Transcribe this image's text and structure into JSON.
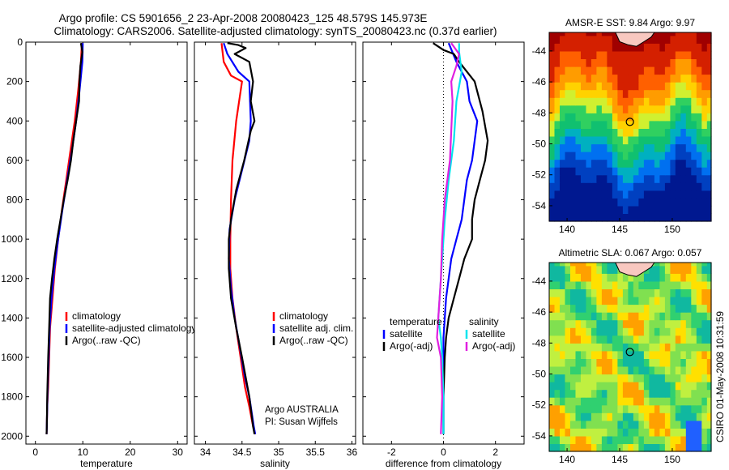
{
  "header": {
    "title_line1": "Argo profile: CS 5901656_2 23-Apr-2008 20080423_125 48.579S 145.973E",
    "title_line2": "Climatology: CARS2006. Satellite-adjusted climatology: synTS_20080423.nc (0.37d earlier)"
  },
  "side_stamp": "CSIRO 01-May-2008 10:31:59",
  "colors": {
    "climatology": "#ff0000",
    "satellite": "#0000ff",
    "argo": "#000000",
    "satellite_salinity": "#00e5ee",
    "argo_adj_salinity": "#e020e0"
  },
  "chart_data": [
    {
      "id": "temperature",
      "type": "line",
      "xlabel": "temperature",
      "ylabel": "",
      "xlim": [
        -2,
        32
      ],
      "ylim": [
        2040,
        0
      ],
      "y_reversed": true,
      "xticks": [
        "0",
        "10",
        "20",
        "30"
      ],
      "xtick_values": [
        0,
        10,
        20,
        30
      ],
      "yticks": [
        "0",
        "200",
        "400",
        "600",
        "800",
        "1000",
        "1200",
        "1400",
        "1600",
        "1800",
        "2000"
      ],
      "ytick_values": [
        0,
        200,
        400,
        600,
        800,
        1000,
        1200,
        1400,
        1600,
        1800,
        2000
      ],
      "legend": {
        "placement": "lower-right",
        "entries": [
          {
            "label": "climatology",
            "color": "#ff0000"
          },
          {
            "label": "satellite-adjusted climatology",
            "color": "#0000ff"
          },
          {
            "label": "Argo(..raw -QC)",
            "color": "#000000"
          }
        ]
      },
      "series": [
        {
          "color": "#ff0000",
          "x": [
            9.8,
            9.6,
            9.0,
            8.3,
            7.4,
            6.5,
            5.6,
            4.8,
            4.1,
            3.6,
            3.1,
            2.9,
            2.7,
            2.5,
            2.4,
            2.35
          ],
          "y": [
            5,
            100,
            250,
            400,
            550,
            700,
            850,
            1000,
            1150,
            1300,
            1450,
            1600,
            1750,
            1850,
            1950,
            1990
          ]
        },
        {
          "color": "#0000ff",
          "x": [
            10.0,
            9.9,
            9.3,
            8.6,
            7.7,
            6.7,
            5.7,
            4.8,
            4.0,
            3.4,
            3.0,
            2.8,
            2.6,
            2.5,
            2.4,
            2.35
          ],
          "y": [
            5,
            100,
            250,
            400,
            550,
            700,
            850,
            1000,
            1150,
            1300,
            1450,
            1600,
            1750,
            1850,
            1950,
            1990
          ]
        },
        {
          "color": "#000000",
          "x": [
            9.6,
            9.9,
            9.5,
            9.3,
            9.2,
            8.6,
            8.0,
            7.5,
            6.8,
            6.0,
            5.3,
            4.6,
            4.0,
            3.5,
            3.1,
            2.9,
            2.7,
            2.5,
            2.4,
            2.35
          ],
          "y": [
            5,
            50,
            120,
            200,
            300,
            400,
            500,
            600,
            700,
            800,
            900,
            1000,
            1100,
            1200,
            1300,
            1450,
            1600,
            1800,
            1950,
            1990
          ]
        }
      ]
    },
    {
      "id": "salinity",
      "type": "line",
      "xlabel": "salinity",
      "xlim": [
        33.85,
        36.05
      ],
      "ylim": [
        2040,
        0
      ],
      "y_reversed": true,
      "xticks": [
        "34",
        "34.5",
        "35",
        "35.5",
        "36"
      ],
      "xtick_values": [
        34,
        34.5,
        35,
        35.5,
        36
      ],
      "legend": {
        "placement": "lower-right",
        "entries": [
          {
            "label": "climatology",
            "color": "#ff0000"
          },
          {
            "label": "satellite adj. clim.",
            "color": "#0000ff"
          },
          {
            "label": "Argo(..raw -QC)",
            "color": "#000000"
          }
        ]
      },
      "annotation_lines": [
        "Argo AUSTRALIA",
        "PI: Susan Wijffels"
      ],
      "series": [
        {
          "color": "#ff0000",
          "x": [
            34.22,
            34.25,
            34.35,
            34.5,
            34.42,
            34.37,
            34.35,
            34.34,
            34.34,
            34.37,
            34.42,
            34.48,
            34.54,
            34.6,
            34.65,
            34.68
          ],
          "y": [
            5,
            100,
            170,
            200,
            400,
            600,
            800,
            1000,
            1150,
            1300,
            1450,
            1600,
            1750,
            1850,
            1950,
            1990
          ]
        },
        {
          "color": "#0000ff",
          "x": [
            34.25,
            34.3,
            34.45,
            34.6,
            34.62,
            34.6,
            34.5,
            34.4,
            34.33,
            34.32,
            34.35,
            34.4,
            34.47,
            34.54,
            34.6,
            34.66,
            34.68
          ],
          "y": [
            5,
            60,
            150,
            200,
            400,
            500,
            650,
            800,
            950,
            1100,
            1250,
            1400,
            1550,
            1700,
            1800,
            1950,
            1990
          ]
        },
        {
          "color": "#000000",
          "x": [
            34.3,
            34.45,
            34.55,
            34.4,
            34.6,
            34.65,
            34.62,
            34.67,
            34.62,
            34.53,
            34.42,
            34.35,
            34.32,
            34.32,
            34.35,
            34.42,
            34.5,
            34.6,
            34.65,
            34.67
          ],
          "y": [
            5,
            15,
            30,
            60,
            100,
            200,
            300,
            400,
            450,
            600,
            750,
            900,
            1000,
            1150,
            1300,
            1450,
            1600,
            1800,
            1950,
            1990
          ]
        }
      ]
    },
    {
      "id": "difference",
      "type": "line",
      "xlabel": "difference from climatology",
      "xlim": [
        -3.1,
        3.1
      ],
      "ylim": [
        2040,
        0
      ],
      "y_reversed": true,
      "xticks": [
        "-2",
        "0",
        "2"
      ],
      "xtick_values": [
        -2,
        0,
        2
      ],
      "legend": {
        "placement": "lower-center",
        "headers": [
          "temperature",
          "salinity"
        ],
        "entries": [
          {
            "label": "satellite",
            "color": "#0000ff"
          },
          {
            "label": "Argo(-adj)",
            "color": "#000000"
          },
          {
            "label": "satellite",
            "color": "#00e5ee"
          },
          {
            "label": "Argo(-adj)",
            "color": "#e020e0"
          }
        ]
      },
      "series": [
        {
          "name": "temperature satellite",
          "color": "#0000ff",
          "x": [
            0.2,
            0.5,
            0.9,
            1.0,
            1.3,
            1.2,
            1.1,
            0.9,
            0.8,
            0.7,
            0.5,
            0.3,
            0.2,
            0.1,
            0.05,
            0.0,
            0.0,
            0.0,
            0.0
          ],
          "y": [
            5,
            100,
            200,
            300,
            400,
            500,
            600,
            700,
            800,
            900,
            1000,
            1100,
            1200,
            1300,
            1400,
            1500,
            1600,
            1800,
            1990
          ]
        },
        {
          "name": "temperature Argo(-adj)",
          "color": "#000000",
          "x": [
            -0.4,
            0.0,
            0.4,
            0.6,
            1.2,
            1.5,
            1.7,
            1.6,
            1.4,
            1.2,
            1.1,
            1.1,
            0.8,
            0.6,
            0.4,
            0.2,
            0.1,
            0.05,
            0.0,
            0.0
          ],
          "y": [
            5,
            40,
            60,
            100,
            200,
            350,
            500,
            600,
            700,
            800,
            900,
            1000,
            1100,
            1200,
            1300,
            1400,
            1500,
            1600,
            1800,
            1990
          ]
        },
        {
          "name": "salinity satellite",
          "color": "#00e5ee",
          "x": [
            0.6,
            0.6,
            0.7,
            0.5,
            0.4,
            0.2,
            0.05,
            0.0,
            -0.05,
            -0.1,
            -0.15,
            -0.2,
            -0.1,
            -0.05,
            0.0,
            0.0
          ],
          "y": [
            5,
            50,
            150,
            300,
            500,
            700,
            900,
            1000,
            1100,
            1200,
            1300,
            1400,
            1500,
            1600,
            1800,
            1990
          ]
        },
        {
          "name": "salinity Argo(-adj)",
          "color": "#e020e0",
          "x": [
            0.3,
            0.6,
            0.5,
            0.3,
            0.35,
            0.3,
            0.25,
            0.05,
            -0.05,
            -0.1,
            -0.15,
            -0.2,
            -0.25,
            -0.1,
            -0.05,
            -0.1
          ],
          "y": [
            5,
            60,
            120,
            200,
            300,
            450,
            600,
            800,
            1000,
            1200,
            1300,
            1400,
            1500,
            1600,
            1800,
            1990
          ]
        }
      ]
    },
    {
      "id": "sst_map",
      "type": "heatmap",
      "title": "AMSR-E SST: 9.84  Argo: 9.97",
      "xlim": [
        138.3,
        153.7
      ],
      "ylim": [
        -55.0,
        -42.8
      ],
      "xticks": [
        "140",
        "145",
        "150"
      ],
      "xtick_values": [
        140,
        145,
        150
      ],
      "yticks": [
        "-44",
        "-46",
        "-48",
        "-50",
        "-52",
        "-54"
      ],
      "ytick_values": [
        -44,
        -46,
        -48,
        -50,
        -52,
        -54
      ],
      "float_position": {
        "lon": 145.973,
        "lat": -48.579
      }
    },
    {
      "id": "sla_map",
      "type": "heatmap",
      "title": "Altimetric SLA: 0.067  Argo: 0.057",
      "xlim": [
        138.3,
        153.7
      ],
      "ylim": [
        -55.0,
        -42.8
      ],
      "xticks": [
        "140",
        "145",
        "150"
      ],
      "xtick_values": [
        140,
        145,
        150
      ],
      "yticks": [
        "-44",
        "-46",
        "-48",
        "-50",
        "-52",
        "-54"
      ],
      "ytick_values": [
        -44,
        -46,
        -48,
        -50,
        -52,
        -54
      ],
      "float_position": {
        "lon": 145.973,
        "lat": -48.579
      }
    }
  ]
}
